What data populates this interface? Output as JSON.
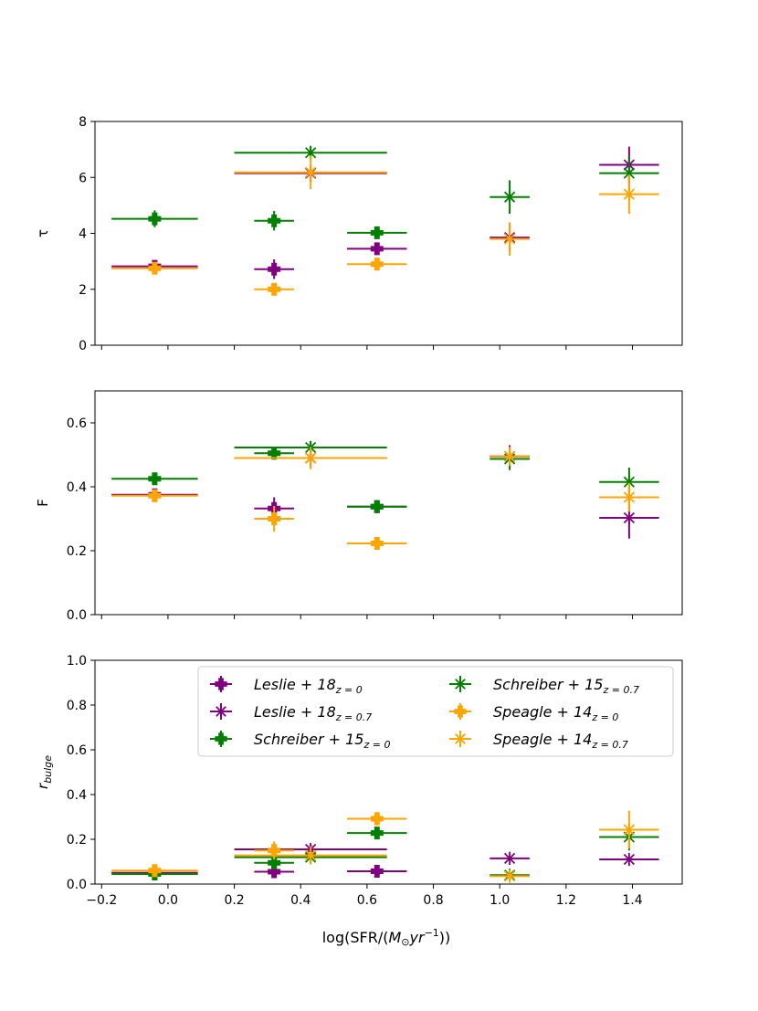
{
  "figure": {
    "xlabel_main": "log(SFR/(",
    "xlabel_unit": "M",
    "xlabel_sun": "⊙",
    "xlabel_yr": "yr",
    "xlabel_exp": "−1",
    "xlabel_close": "))"
  },
  "chart_data": [
    {
      "type": "scatter",
      "panel": "top",
      "ylabel": "τ",
      "xlim": [
        -0.22,
        1.55
      ],
      "ylim": [
        0,
        8
      ],
      "xticks": [
        -0.2,
        0.0,
        0.2,
        0.4,
        0.6,
        0.8,
        1.0,
        1.2,
        1.4
      ],
      "yticks": [
        0,
        2,
        4,
        6,
        8
      ],
      "ytick_labels": [
        "0",
        "2",
        "4",
        "6",
        "8"
      ],
      "show_xtick_labels": false,
      "series": [
        {
          "name": "Leslie+18 z=0",
          "marker": "P",
          "color": "#800080",
          "points": [
            {
              "x": -0.04,
              "y": 2.82,
              "xerr": 0.13,
              "yerr": 0.15
            },
            {
              "x": 0.32,
              "y": 2.72,
              "xerr": 0.06,
              "yerr": 0.35
            },
            {
              "x": 0.63,
              "y": 3.45,
              "xerr": 0.09,
              "yerr": 0.1
            }
          ]
        },
        {
          "name": "Leslie+18 z=0.7",
          "marker": "x",
          "color": "#800080",
          "points": [
            {
              "x": 0.43,
              "y": 6.15,
              "xerr": 0.23,
              "yerr": 0.3
            },
            {
              "x": 1.03,
              "y": 3.85,
              "xerr": 0.06,
              "yerr": 0.5
            },
            {
              "x": 1.39,
              "y": 6.45,
              "xerr": 0.09,
              "yerr": 0.65
            }
          ]
        },
        {
          "name": "Schreiber+15 z=0",
          "marker": "P",
          "color": "#008000",
          "points": [
            {
              "x": -0.04,
              "y": 4.52,
              "xerr": 0.13,
              "yerr": 0.3
            },
            {
              "x": 0.32,
              "y": 4.45,
              "xerr": 0.06,
              "yerr": 0.35
            },
            {
              "x": 0.63,
              "y": 4.02,
              "xerr": 0.09,
              "yerr": 0.15
            }
          ]
        },
        {
          "name": "Schreiber+15 z=0.7",
          "marker": "x",
          "color": "#008000",
          "points": [
            {
              "x": 0.43,
              "y": 6.88,
              "xerr": 0.23,
              "yerr": 0.25
            },
            {
              "x": 1.03,
              "y": 5.3,
              "xerr": 0.06,
              "yerr": 0.6
            },
            {
              "x": 1.39,
              "y": 6.15,
              "xerr": 0.09,
              "yerr": 0.6
            }
          ]
        },
        {
          "name": "Speagle+14 z=0",
          "marker": "P",
          "color": "#FFA500",
          "points": [
            {
              "x": -0.04,
              "y": 2.75,
              "xerr": 0.13,
              "yerr": 0.1
            },
            {
              "x": 0.32,
              "y": 2.0,
              "xerr": 0.06,
              "yerr": 0.12
            },
            {
              "x": 0.63,
              "y": 2.9,
              "xerr": 0.09,
              "yerr": 0.1
            }
          ]
        },
        {
          "name": "Speagle+14 z=0.7",
          "marker": "x",
          "color": "#FFA500",
          "points": [
            {
              "x": 0.43,
              "y": 6.18,
              "xerr": 0.23,
              "yerr": 0.6
            },
            {
              "x": 1.03,
              "y": 3.8,
              "xerr": 0.06,
              "yerr": 0.6
            },
            {
              "x": 1.39,
              "y": 5.4,
              "xerr": 0.09,
              "yerr": 0.7
            }
          ]
        }
      ]
    },
    {
      "type": "scatter",
      "panel": "middle",
      "ylabel": "F",
      "xlim": [
        -0.22,
        1.55
      ],
      "ylim": [
        0,
        0.7
      ],
      "xticks": [
        -0.2,
        0.0,
        0.2,
        0.4,
        0.6,
        0.8,
        1.0,
        1.2,
        1.4
      ],
      "yticks": [
        0.0,
        0.2,
        0.4,
        0.6
      ],
      "ytick_labels": [
        "0.0",
        "0.2",
        "0.4",
        "0.6"
      ],
      "show_xtick_labels": false,
      "series": [
        {
          "name": "Leslie+18 z=0",
          "marker": "P",
          "color": "#800080",
          "points": [
            {
              "x": -0.04,
              "y": 0.375,
              "xerr": 0.13,
              "yerr": 0.015
            },
            {
              "x": 0.32,
              "y": 0.332,
              "xerr": 0.06,
              "yerr": 0.035
            },
            {
              "x": 0.63,
              "y": 0.338,
              "xerr": 0.09,
              "yerr": 0.02
            }
          ]
        },
        {
          "name": "Leslie+18 z=0.7",
          "marker": "x",
          "color": "#800080",
          "points": [
            {
              "x": 0.43,
              "y": 0.49,
              "xerr": 0.23,
              "yerr": 0.03
            },
            {
              "x": 1.03,
              "y": 0.495,
              "xerr": 0.06,
              "yerr": 0.035
            },
            {
              "x": 1.39,
              "y": 0.303,
              "xerr": 0.09,
              "yerr": 0.065
            }
          ]
        },
        {
          "name": "Schreiber+15 z=0",
          "marker": "P",
          "color": "#008000",
          "points": [
            {
              "x": -0.04,
              "y": 0.425,
              "xerr": 0.13,
              "yerr": 0.015
            },
            {
              "x": 0.32,
              "y": 0.505,
              "xerr": 0.06,
              "yerr": 0.02
            },
            {
              "x": 0.63,
              "y": 0.338,
              "xerr": 0.09,
              "yerr": 0.02
            }
          ]
        },
        {
          "name": "Schreiber+15 z=0.7",
          "marker": "x",
          "color": "#008000",
          "points": [
            {
              "x": 0.43,
              "y": 0.523,
              "xerr": 0.23,
              "yerr": 0.02
            },
            {
              "x": 1.03,
              "y": 0.487,
              "xerr": 0.06,
              "yerr": 0.035
            },
            {
              "x": 1.39,
              "y": 0.415,
              "xerr": 0.09,
              "yerr": 0.045
            }
          ]
        },
        {
          "name": "Speagle+14 z=0",
          "marker": "P",
          "color": "#FFA500",
          "points": [
            {
              "x": -0.04,
              "y": 0.372,
              "xerr": 0.13,
              "yerr": 0.02
            },
            {
              "x": 0.32,
              "y": 0.3,
              "xerr": 0.06,
              "yerr": 0.04
            },
            {
              "x": 0.63,
              "y": 0.223,
              "xerr": 0.09,
              "yerr": 0.015
            }
          ]
        },
        {
          "name": "Speagle+14 z=0.7",
          "marker": "x",
          "color": "#FFA500",
          "points": [
            {
              "x": 0.43,
              "y": 0.49,
              "xerr": 0.23,
              "yerr": 0.035
            },
            {
              "x": 1.03,
              "y": 0.495,
              "xerr": 0.06,
              "yerr": 0.03
            },
            {
              "x": 1.39,
              "y": 0.367,
              "xerr": 0.09,
              "yerr": 0.045
            }
          ]
        }
      ]
    },
    {
      "type": "scatter",
      "panel": "bottom",
      "ylabel": "r_bulge",
      "ylabel_main": "r",
      "ylabel_sub": "bulge",
      "xlim": [
        -0.22,
        1.55
      ],
      "ylim": [
        0,
        1.0
      ],
      "xticks": [
        -0.2,
        0.0,
        0.2,
        0.4,
        0.6,
        0.8,
        1.0,
        1.2,
        1.4
      ],
      "xtick_labels": [
        "−0.2",
        "0.0",
        "0.2",
        "0.4",
        "0.6",
        "0.8",
        "1.0",
        "1.2",
        "1.4"
      ],
      "yticks": [
        0.0,
        0.2,
        0.4,
        0.6,
        0.8,
        1.0
      ],
      "ytick_labels": [
        "0.0",
        "0.2",
        "0.4",
        "0.6",
        "0.8",
        "1.0"
      ],
      "show_xtick_labels": true,
      "legend_position": "upper-right",
      "series": [
        {
          "name": "Leslie+18 z=0",
          "marker": "P",
          "color": "#800080",
          "points": [
            {
              "x": -0.04,
              "y": 0.05,
              "xerr": 0.13,
              "yerr": 0.01
            },
            {
              "x": 0.32,
              "y": 0.055,
              "xerr": 0.06,
              "yerr": 0.01
            },
            {
              "x": 0.63,
              "y": 0.057,
              "xerr": 0.09,
              "yerr": 0.008
            }
          ]
        },
        {
          "name": "Leslie+18 z=0.7",
          "marker": "x",
          "color": "#800080",
          "points": [
            {
              "x": 0.43,
              "y": 0.155,
              "xerr": 0.23,
              "yerr": 0.02
            },
            {
              "x": 1.03,
              "y": 0.115,
              "xerr": 0.06,
              "yerr": 0.01
            },
            {
              "x": 1.39,
              "y": 0.11,
              "xerr": 0.09,
              "yerr": 0.01
            }
          ]
        },
        {
          "name": "Schreiber+15 z=0",
          "marker": "P",
          "color": "#008000",
          "points": [
            {
              "x": -0.04,
              "y": 0.045,
              "xerr": 0.13,
              "yerr": 0.01
            },
            {
              "x": 0.32,
              "y": 0.095,
              "xerr": 0.06,
              "yerr": 0.02
            },
            {
              "x": 0.63,
              "y": 0.228,
              "xerr": 0.09,
              "yerr": 0.025
            }
          ]
        },
        {
          "name": "Schreiber+15 z=0.7",
          "marker": "x",
          "color": "#008000",
          "points": [
            {
              "x": 0.43,
              "y": 0.12,
              "xerr": 0.23,
              "yerr": 0.03
            },
            {
              "x": 1.03,
              "y": 0.04,
              "xerr": 0.06,
              "yerr": 0.01
            },
            {
              "x": 1.39,
              "y": 0.21,
              "xerr": 0.09,
              "yerr": 0.06
            }
          ]
        },
        {
          "name": "Speagle+14 z=0",
          "marker": "P",
          "color": "#FFA500",
          "points": [
            {
              "x": -0.04,
              "y": 0.06,
              "xerr": 0.13,
              "yerr": 0.01
            },
            {
              "x": 0.32,
              "y": 0.15,
              "xerr": 0.06,
              "yerr": 0.04
            },
            {
              "x": 0.63,
              "y": 0.292,
              "xerr": 0.09,
              "yerr": 0.03
            }
          ]
        },
        {
          "name": "Speagle+14 z=0.7",
          "marker": "x",
          "color": "#FFA500",
          "points": [
            {
              "x": 0.43,
              "y": 0.128,
              "xerr": 0.23,
              "yerr": 0.04
            },
            {
              "x": 1.03,
              "y": 0.035,
              "xerr": 0.06,
              "yerr": 0.01
            },
            {
              "x": 1.39,
              "y": 0.243,
              "xerr": 0.09,
              "yerr": 0.085
            }
          ]
        }
      ]
    }
  ],
  "legend": {
    "entries": [
      {
        "label": "Leslie + 18",
        "sub": "z = 0",
        "marker": "P",
        "color": "#800080"
      },
      {
        "label": "Leslie + 18",
        "sub": "z = 0.7",
        "marker": "x",
        "color": "#800080"
      },
      {
        "label": "Schreiber + 15",
        "sub": "z = 0",
        "marker": "P",
        "color": "#008000"
      },
      {
        "label": "Schreiber + 15",
        "sub": "z = 0.7",
        "marker": "x",
        "color": "#008000"
      },
      {
        "label": "Speagle + 14",
        "sub": "z = 0",
        "marker": "P",
        "color": "#FFA500"
      },
      {
        "label": "Speagle + 14",
        "sub": "z = 0.7",
        "marker": "x",
        "color": "#FFA500"
      }
    ]
  }
}
